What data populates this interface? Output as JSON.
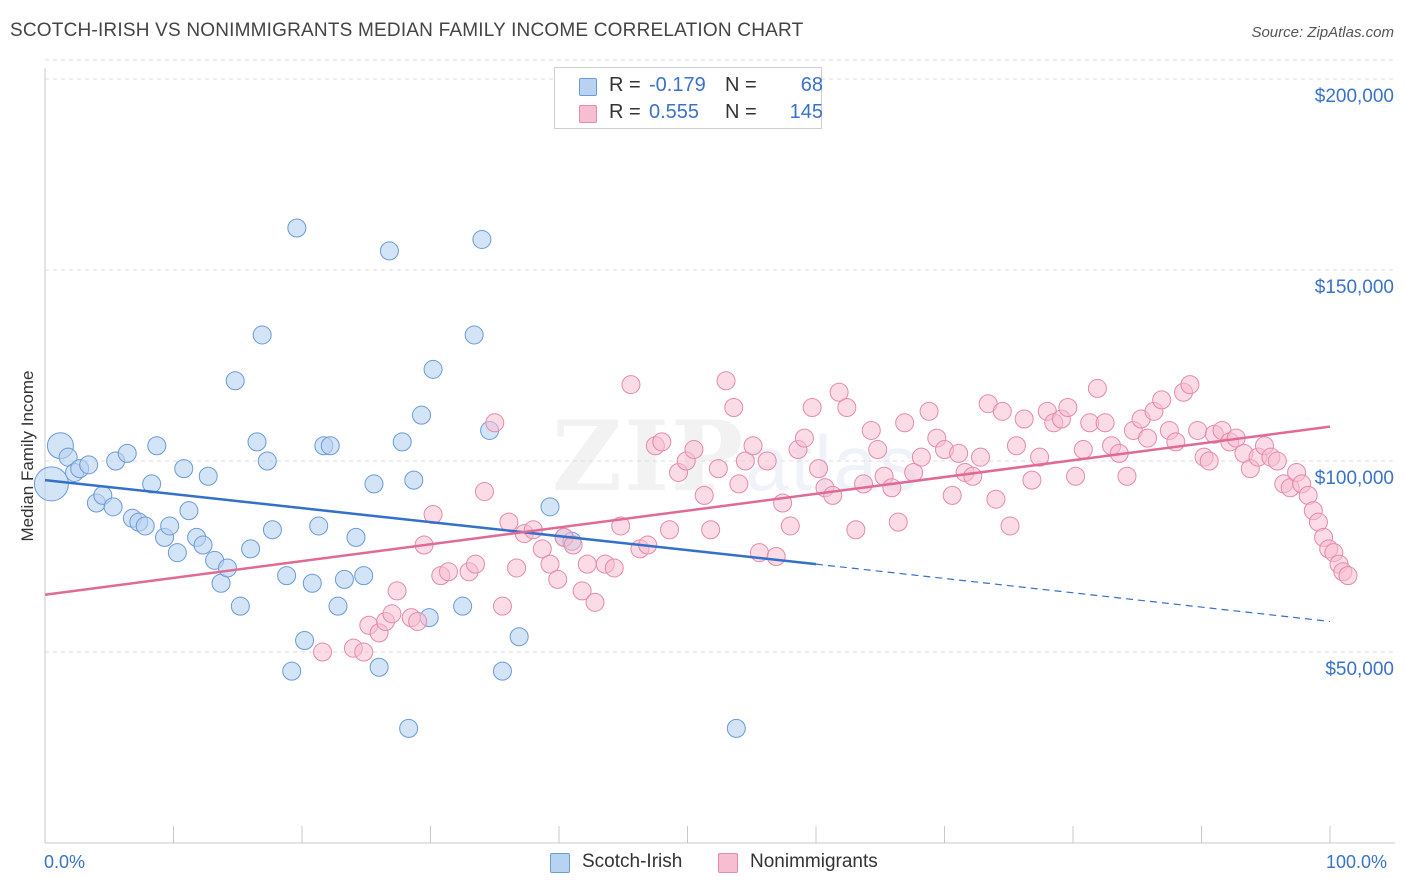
{
  "header": {
    "title": "SCOTCH-IRISH VS NONIMMIGRANTS MEDIAN FAMILY INCOME CORRELATION CHART",
    "source": "Source: ZipAtlas.com"
  },
  "watermark": {
    "main": "ZIP",
    "sub": "atlas"
  },
  "legend": {
    "rows": [
      {
        "r_label": "R =",
        "r_value": "-0.179",
        "n_label": "N =",
        "n_value": "68"
      },
      {
        "r_label": "R =",
        "r_value": "0.555",
        "n_label": "N =",
        "n_value": "145"
      }
    ],
    "bottom": [
      "Scotch-Irish",
      "Nonimmigrants"
    ]
  },
  "axes": {
    "ylabel": "Median Family Income",
    "yticks": [
      "$200,000",
      "$150,000",
      "$100,000",
      "$50,000"
    ],
    "xticks": [
      "0.0%",
      "100.0%"
    ]
  },
  "colors": {
    "blue_fill": "#b8d2f2",
    "blue_stroke": "#6a9ad8",
    "blue_line": "#3370c8",
    "pink_fill": "#f7bdd0",
    "pink_stroke": "#e58aab",
    "pink_line": "#e06a96",
    "grid": "#dcdcdc",
    "axis_text": "#3a72c8"
  },
  "chart_data": {
    "type": "scatter",
    "xlabel": "",
    "ylabel": "Median Family Income",
    "xlim": [
      0,
      100
    ],
    "ylim": [
      0,
      210000
    ],
    "y_gridlines": [
      50000,
      100000,
      150000,
      200000
    ],
    "legend_placement": "top-center",
    "series": [
      {
        "name": "Scotch-Irish",
        "R": -0.179,
        "N": 68,
        "trend": {
          "x": [
            0,
            60
          ],
          "y": [
            95000,
            73000
          ],
          "dashed_to": [
            100,
            58000
          ]
        },
        "points": [
          [
            0.5,
            94000
          ],
          [
            1.2,
            104000
          ],
          [
            1.8,
            101000
          ],
          [
            2.3,
            97000
          ],
          [
            2.7,
            98000
          ],
          [
            3.4,
            99000
          ],
          [
            4.0,
            89000
          ],
          [
            4.5,
            91000
          ],
          [
            5.3,
            88000
          ],
          [
            5.5,
            100000
          ],
          [
            6.4,
            102000
          ],
          [
            6.8,
            85000
          ],
          [
            7.3,
            84000
          ],
          [
            7.8,
            83000
          ],
          [
            8.3,
            94000
          ],
          [
            8.7,
            104000
          ],
          [
            9.3,
            80000
          ],
          [
            9.7,
            83000
          ],
          [
            10.3,
            76000
          ],
          [
            10.8,
            98000
          ],
          [
            11.2,
            87000
          ],
          [
            11.8,
            80000
          ],
          [
            12.3,
            78000
          ],
          [
            12.7,
            96000
          ],
          [
            13.2,
            74000
          ],
          [
            13.7,
            68000
          ],
          [
            14.2,
            72000
          ],
          [
            14.8,
            121000
          ],
          [
            15.2,
            62000
          ],
          [
            16.0,
            77000
          ],
          [
            16.5,
            105000
          ],
          [
            16.9,
            133000
          ],
          [
            17.3,
            100000
          ],
          [
            17.7,
            82000
          ],
          [
            18.8,
            70000
          ],
          [
            19.2,
            45000
          ],
          [
            19.6,
            161000
          ],
          [
            20.2,
            53000
          ],
          [
            20.8,
            68000
          ],
          [
            21.3,
            83000
          ],
          [
            21.7,
            104000
          ],
          [
            22.2,
            104000
          ],
          [
            22.8,
            62000
          ],
          [
            23.3,
            69000
          ],
          [
            24.2,
            80000
          ],
          [
            24.8,
            70000
          ],
          [
            25.6,
            94000
          ],
          [
            26.0,
            46000
          ],
          [
            26.8,
            155000
          ],
          [
            27.8,
            105000
          ],
          [
            28.3,
            30000
          ],
          [
            28.7,
            95000
          ],
          [
            29.3,
            112000
          ],
          [
            29.9,
            59000
          ],
          [
            30.2,
            124000
          ],
          [
            32.5,
            62000
          ],
          [
            33.4,
            133000
          ],
          [
            34.0,
            158000
          ],
          [
            34.6,
            108000
          ],
          [
            35.6,
            45000
          ],
          [
            36.9,
            54000
          ],
          [
            39.3,
            88000
          ],
          [
            40.4,
            80000
          ],
          [
            41.0,
            79000
          ],
          [
            53.8,
            30000
          ]
        ]
      },
      {
        "name": "Nonimmigrants",
        "R": 0.555,
        "N": 145,
        "trend": {
          "x": [
            0,
            100
          ],
          "y": [
            65000,
            109000
          ]
        },
        "points": [
          [
            21.6,
            50000
          ],
          [
            24.0,
            51000
          ],
          [
            24.8,
            50000
          ],
          [
            25.2,
            57000
          ],
          [
            26.0,
            55000
          ],
          [
            26.5,
            58000
          ],
          [
            27.0,
            60000
          ],
          [
            27.4,
            66000
          ],
          [
            28.5,
            59000
          ],
          [
            29.0,
            58000
          ],
          [
            29.5,
            78000
          ],
          [
            30.2,
            86000
          ],
          [
            30.8,
            70000
          ],
          [
            31.4,
            71000
          ],
          [
            33.0,
            71000
          ],
          [
            33.5,
            73000
          ],
          [
            34.2,
            92000
          ],
          [
            35.0,
            110000
          ],
          [
            35.6,
            62000
          ],
          [
            36.1,
            84000
          ],
          [
            36.7,
            72000
          ],
          [
            37.3,
            81000
          ],
          [
            38.0,
            82000
          ],
          [
            38.7,
            77000
          ],
          [
            39.3,
            73000
          ],
          [
            39.9,
            69000
          ],
          [
            40.4,
            80000
          ],
          [
            41.1,
            78000
          ],
          [
            41.8,
            66000
          ],
          [
            42.2,
            73000
          ],
          [
            42.8,
            63000
          ],
          [
            43.6,
            73000
          ],
          [
            44.3,
            72000
          ],
          [
            44.8,
            83000
          ],
          [
            45.6,
            120000
          ],
          [
            46.3,
            77000
          ],
          [
            46.9,
            78000
          ],
          [
            47.5,
            104000
          ],
          [
            48.0,
            105000
          ],
          [
            48.6,
            82000
          ],
          [
            49.3,
            97000
          ],
          [
            49.9,
            100000
          ],
          [
            50.5,
            103000
          ],
          [
            51.3,
            91000
          ],
          [
            51.8,
            82000
          ],
          [
            52.4,
            98000
          ],
          [
            53.0,
            121000
          ],
          [
            53.6,
            114000
          ],
          [
            54.0,
            94000
          ],
          [
            54.5,
            100000
          ],
          [
            55.1,
            104000
          ],
          [
            55.6,
            76000
          ],
          [
            56.2,
            100000
          ],
          [
            56.9,
            75000
          ],
          [
            57.4,
            89000
          ],
          [
            58.0,
            83000
          ],
          [
            58.6,
            103000
          ],
          [
            59.1,
            106000
          ],
          [
            59.7,
            114000
          ],
          [
            60.2,
            98000
          ],
          [
            60.7,
            93000
          ],
          [
            61.3,
            91000
          ],
          [
            61.8,
            118000
          ],
          [
            62.4,
            114000
          ],
          [
            63.1,
            82000
          ],
          [
            63.7,
            94000
          ],
          [
            64.3,
            108000
          ],
          [
            64.8,
            103000
          ],
          [
            65.3,
            96000
          ],
          [
            65.9,
            93000
          ],
          [
            66.4,
            84000
          ],
          [
            66.9,
            110000
          ],
          [
            67.6,
            97000
          ],
          [
            68.2,
            101000
          ],
          [
            68.8,
            113000
          ],
          [
            69.4,
            106000
          ],
          [
            70.0,
            103000
          ],
          [
            70.6,
            91000
          ],
          [
            71.1,
            102000
          ],
          [
            71.6,
            97000
          ],
          [
            72.2,
            96000
          ],
          [
            72.8,
            101000
          ],
          [
            73.4,
            115000
          ],
          [
            74.0,
            90000
          ],
          [
            74.5,
            113000
          ],
          [
            75.1,
            83000
          ],
          [
            75.6,
            104000
          ],
          [
            76.2,
            111000
          ],
          [
            76.8,
            95000
          ],
          [
            77.4,
            101000
          ],
          [
            78.0,
            113000
          ],
          [
            78.5,
            110000
          ],
          [
            79.1,
            111000
          ],
          [
            79.6,
            114000
          ],
          [
            80.2,
            96000
          ],
          [
            80.8,
            103000
          ],
          [
            81.3,
            110000
          ],
          [
            81.9,
            119000
          ],
          [
            82.5,
            110000
          ],
          [
            83.0,
            104000
          ],
          [
            83.6,
            102000
          ],
          [
            84.2,
            96000
          ],
          [
            84.7,
            108000
          ],
          [
            85.3,
            111000
          ],
          [
            85.8,
            106000
          ],
          [
            86.3,
            113000
          ],
          [
            86.9,
            116000
          ],
          [
            87.5,
            108000
          ],
          [
            88.0,
            105000
          ],
          [
            88.6,
            118000
          ],
          [
            89.1,
            120000
          ],
          [
            89.7,
            108000
          ],
          [
            90.2,
            101000
          ],
          [
            90.6,
            100000
          ],
          [
            91.0,
            107000
          ],
          [
            91.6,
            108000
          ],
          [
            92.2,
            105000
          ],
          [
            92.7,
            106000
          ],
          [
            93.3,
            102000
          ],
          [
            93.8,
            98000
          ],
          [
            94.4,
            101000
          ],
          [
            94.9,
            104000
          ],
          [
            95.4,
            101000
          ],
          [
            95.9,
            100000
          ],
          [
            96.4,
            94000
          ],
          [
            96.9,
            93000
          ],
          [
            97.4,
            97000
          ],
          [
            97.8,
            94000
          ],
          [
            98.3,
            91000
          ],
          [
            98.7,
            87000
          ],
          [
            99.1,
            84000
          ],
          [
            99.5,
            80000
          ],
          [
            99.9,
            77000
          ],
          [
            100.3,
            76000
          ],
          [
            100.7,
            73000
          ],
          [
            101.0,
            71000
          ],
          [
            101.4,
            70000
          ]
        ]
      }
    ]
  }
}
